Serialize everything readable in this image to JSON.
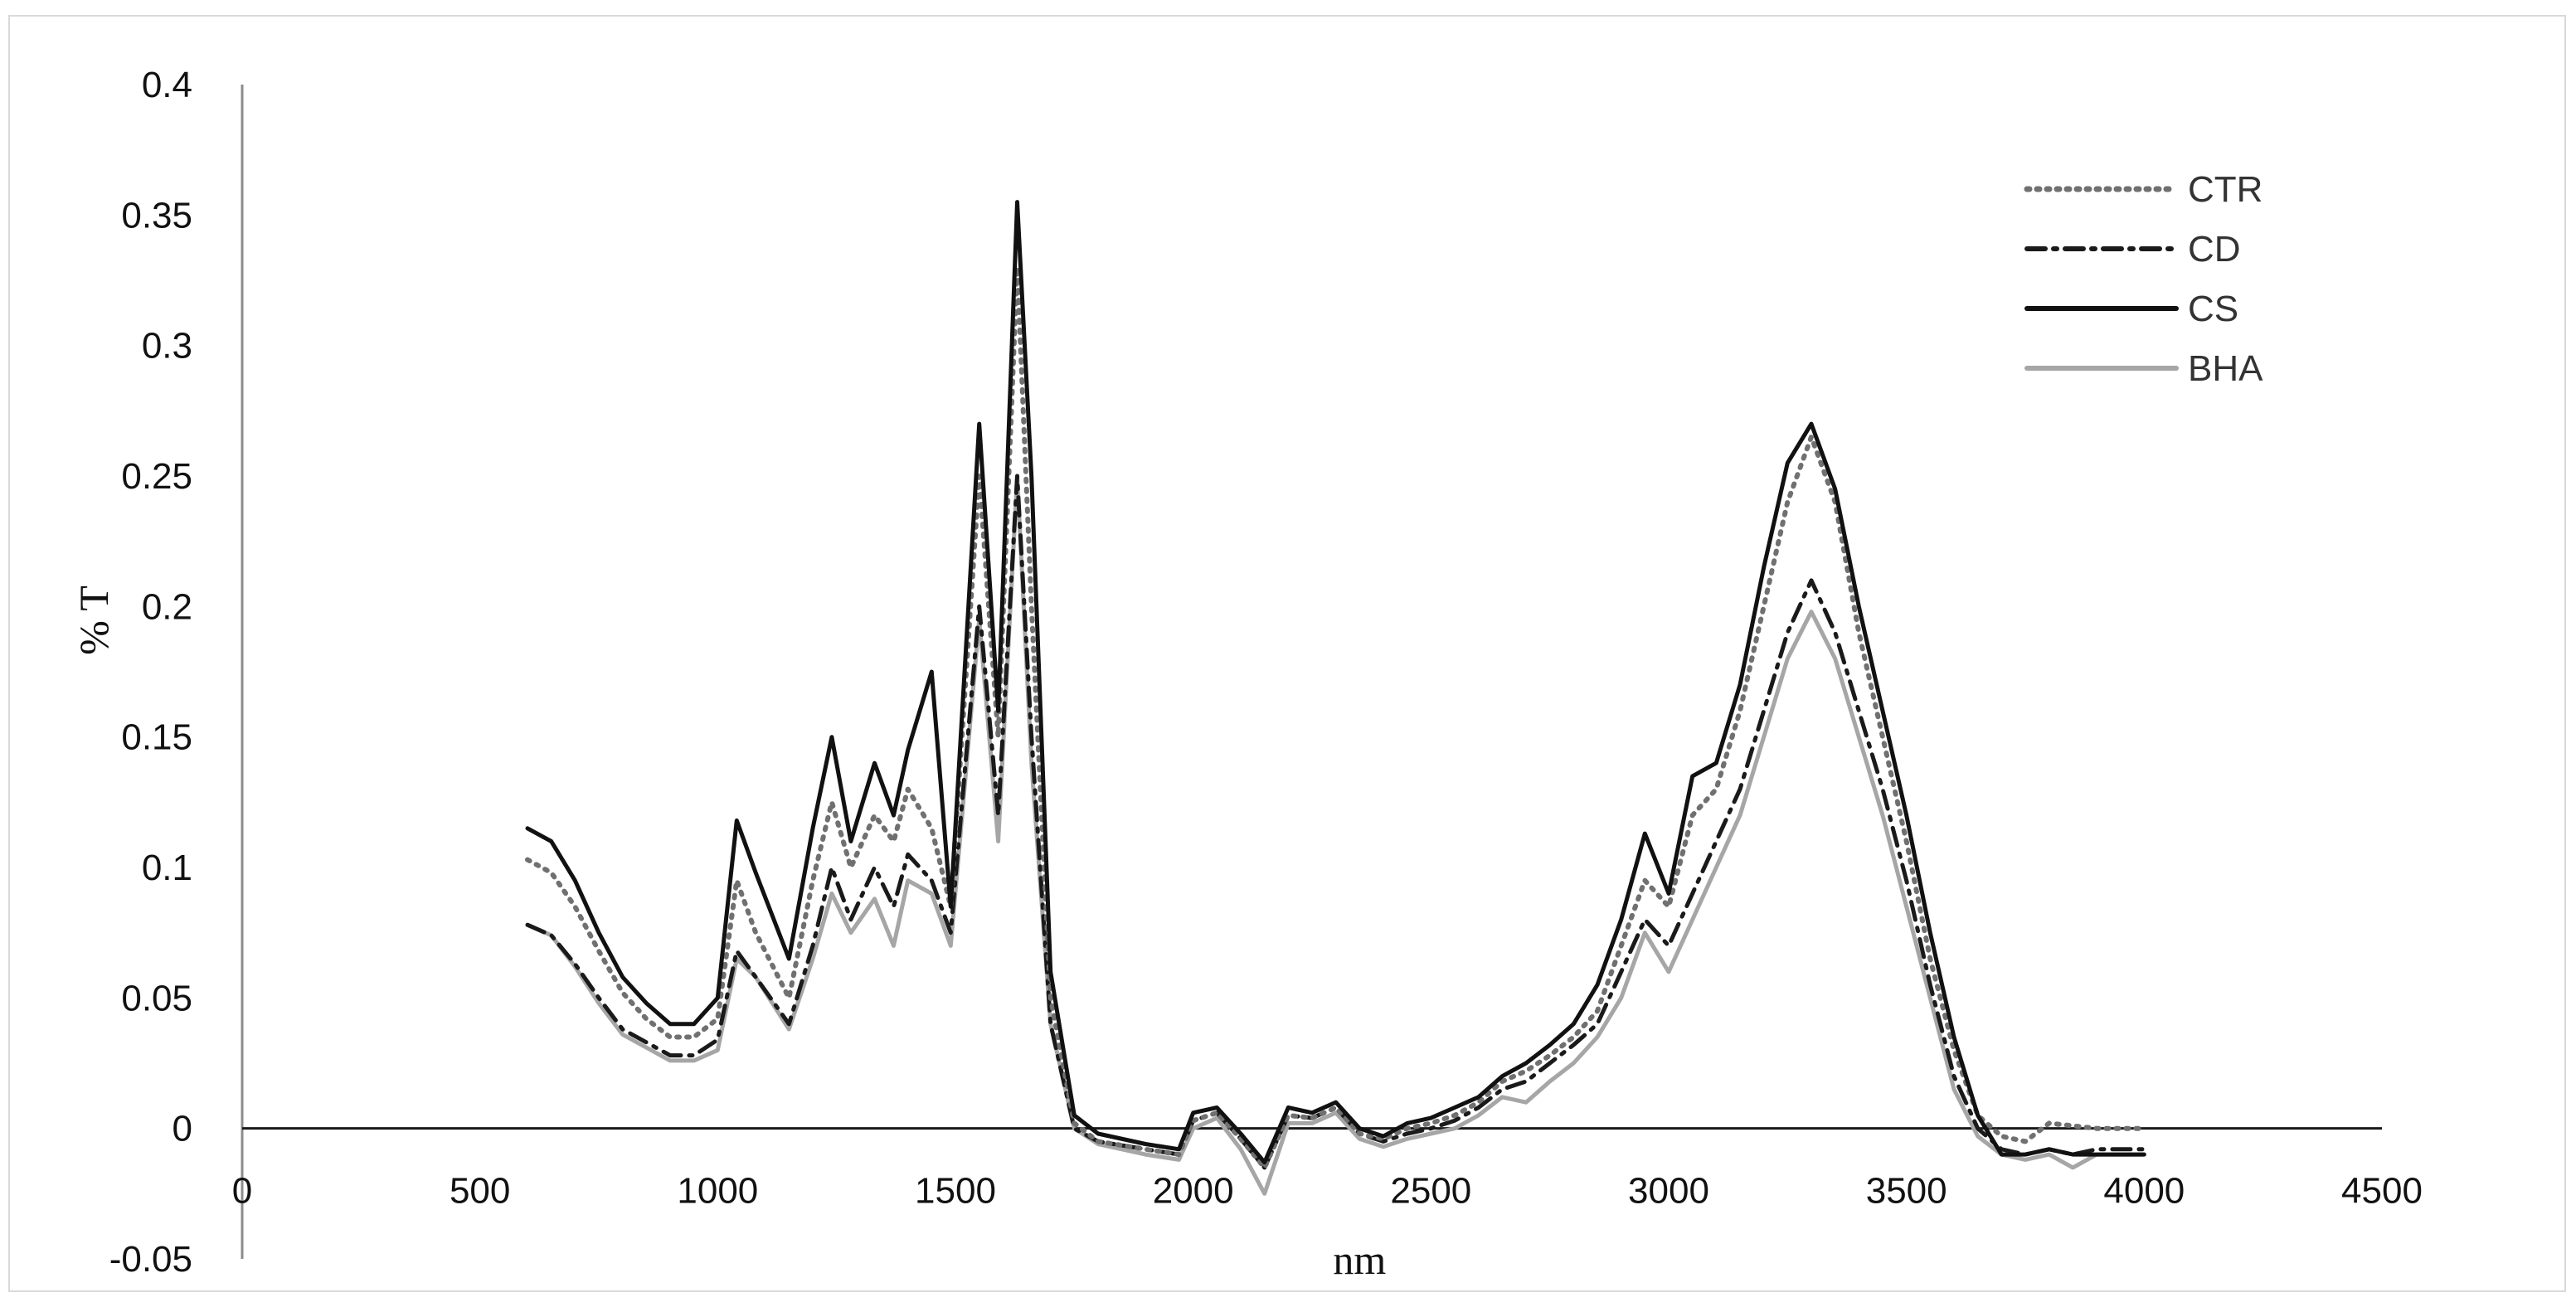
{
  "chart_data": {
    "type": "line",
    "title": "",
    "xlabel": "nm",
    "ylabel": "% T",
    "xlim": [
      0,
      4500
    ],
    "ylim": [
      -0.05,
      0.4
    ],
    "x_ticks": [
      0,
      500,
      1000,
      1500,
      2000,
      2500,
      3000,
      3500,
      4000,
      4500
    ],
    "x_tick_labels": [
      "0",
      "500",
      "1000",
      "1500",
      "2000",
      "2500",
      "3000",
      "3500",
      "4000",
      "4500"
    ],
    "y_ticks": [
      -0.05,
      0,
      0.05,
      0.1,
      0.15,
      0.2,
      0.25,
      0.3,
      0.35,
      0.4
    ],
    "y_tick_labels": [
      "-0.05",
      "0",
      "0.05",
      "0.1",
      "0.15",
      "0.2",
      "0.25",
      "0.3",
      "0.35",
      "0.4"
    ],
    "grid": false,
    "legend_position": "top-right",
    "series": [
      {
        "name": "CTR",
        "color": "#707070",
        "style": "dotted",
        "x": [
          600,
          650,
          700,
          750,
          800,
          850,
          900,
          950,
          1000,
          1040,
          1080,
          1150,
          1200,
          1240,
          1280,
          1330,
          1370,
          1400,
          1450,
          1490,
          1550,
          1590,
          1630,
          1660,
          1700,
          1750,
          1800,
          1900,
          1970,
          2000,
          2050,
          2100,
          2150,
          2200,
          2250,
          2300,
          2350,
          2400,
          2450,
          2500,
          2550,
          2600,
          2650,
          2700,
          2750,
          2800,
          2850,
          2900,
          2950,
          3000,
          3050,
          3100,
          3150,
          3200,
          3250,
          3300,
          3350,
          3400,
          3450,
          3500,
          3550,
          3600,
          3650,
          3700,
          3750,
          3800,
          3850,
          3900,
          3950,
          4000
        ],
        "y": [
          0.103,
          0.098,
          0.085,
          0.068,
          0.052,
          0.042,
          0.035,
          0.035,
          0.042,
          0.095,
          0.075,
          0.05,
          0.095,
          0.125,
          0.1,
          0.12,
          0.11,
          0.13,
          0.115,
          0.085,
          0.25,
          0.15,
          0.33,
          0.2,
          0.05,
          0.002,
          -0.005,
          -0.008,
          -0.01,
          0.003,
          0.006,
          -0.004,
          -0.015,
          0.005,
          0.004,
          0.008,
          -0.002,
          -0.004,
          0.0,
          0.002,
          0.005,
          0.01,
          0.018,
          0.022,
          0.028,
          0.035,
          0.045,
          0.07,
          0.095,
          0.085,
          0.12,
          0.13,
          0.16,
          0.2,
          0.24,
          0.265,
          0.24,
          0.19,
          0.15,
          0.11,
          0.065,
          0.03,
          0.005,
          -0.003,
          -0.005,
          0.002,
          0.001,
          0.0,
          0.0,
          0.0
        ]
      },
      {
        "name": "CD",
        "color": "#1a1a1a",
        "style": "dashdot",
        "x": [
          600,
          650,
          700,
          750,
          800,
          850,
          900,
          950,
          1000,
          1040,
          1080,
          1150,
          1200,
          1240,
          1280,
          1330,
          1370,
          1400,
          1450,
          1490,
          1550,
          1590,
          1630,
          1660,
          1700,
          1750,
          1800,
          1900,
          1970,
          2000,
          2050,
          2100,
          2150,
          2200,
          2250,
          2300,
          2350,
          2400,
          2450,
          2500,
          2550,
          2600,
          2650,
          2700,
          2750,
          2800,
          2850,
          2900,
          2950,
          3000,
          3050,
          3100,
          3150,
          3200,
          3250,
          3300,
          3350,
          3400,
          3450,
          3500,
          3550,
          3600,
          3650,
          3700,
          3750,
          3800,
          3850,
          3900,
          3950,
          4000
        ],
        "y": [
          0.078,
          0.074,
          0.063,
          0.05,
          0.038,
          0.033,
          0.028,
          0.028,
          0.034,
          0.068,
          0.058,
          0.04,
          0.07,
          0.1,
          0.08,
          0.1,
          0.085,
          0.105,
          0.095,
          0.075,
          0.2,
          0.12,
          0.25,
          0.15,
          0.04,
          0.0,
          -0.005,
          -0.008,
          -0.01,
          0.003,
          0.006,
          -0.004,
          -0.015,
          0.005,
          0.004,
          0.008,
          -0.002,
          -0.005,
          -0.002,
          0.0,
          0.003,
          0.008,
          0.015,
          0.018,
          0.025,
          0.032,
          0.04,
          0.06,
          0.08,
          0.07,
          0.09,
          0.11,
          0.13,
          0.16,
          0.19,
          0.21,
          0.19,
          0.16,
          0.13,
          0.095,
          0.055,
          0.02,
          0.0,
          -0.008,
          -0.01,
          -0.008,
          -0.01,
          -0.008,
          -0.008,
          -0.008
        ]
      },
      {
        "name": "CS",
        "color": "#111111",
        "style": "solid",
        "x": [
          600,
          650,
          700,
          750,
          800,
          850,
          900,
          950,
          1000,
          1040,
          1080,
          1150,
          1200,
          1240,
          1280,
          1330,
          1370,
          1400,
          1450,
          1490,
          1550,
          1590,
          1630,
          1660,
          1700,
          1750,
          1800,
          1900,
          1970,
          2000,
          2050,
          2100,
          2150,
          2200,
          2250,
          2300,
          2350,
          2400,
          2450,
          2500,
          2550,
          2600,
          2650,
          2700,
          2750,
          2800,
          2850,
          2900,
          2950,
          3000,
          3050,
          3100,
          3150,
          3200,
          3250,
          3300,
          3350,
          3400,
          3450,
          3500,
          3550,
          3600,
          3650,
          3700,
          3750,
          3800,
          3850,
          3900,
          3950,
          4000
        ],
        "y": [
          0.115,
          0.11,
          0.095,
          0.075,
          0.058,
          0.048,
          0.04,
          0.04,
          0.05,
          0.118,
          0.098,
          0.065,
          0.115,
          0.15,
          0.11,
          0.14,
          0.12,
          0.145,
          0.175,
          0.085,
          0.27,
          0.16,
          0.355,
          0.25,
          0.06,
          0.005,
          -0.002,
          -0.006,
          -0.008,
          0.006,
          0.008,
          -0.002,
          -0.013,
          0.008,
          0.006,
          0.01,
          0.0,
          -0.003,
          0.002,
          0.004,
          0.008,
          0.012,
          0.02,
          0.025,
          0.032,
          0.04,
          0.055,
          0.08,
          0.113,
          0.09,
          0.135,
          0.14,
          0.17,
          0.215,
          0.255,
          0.27,
          0.245,
          0.2,
          0.16,
          0.12,
          0.075,
          0.035,
          0.005,
          -0.01,
          -0.01,
          -0.008,
          -0.01,
          -0.01,
          -0.01,
          -0.01
        ]
      },
      {
        "name": "BHA",
        "color": "#a6a6a6",
        "style": "solid",
        "x": [
          600,
          650,
          700,
          750,
          800,
          850,
          900,
          950,
          1000,
          1040,
          1080,
          1150,
          1200,
          1240,
          1280,
          1330,
          1370,
          1400,
          1450,
          1490,
          1550,
          1590,
          1630,
          1660,
          1700,
          1750,
          1800,
          1900,
          1970,
          2000,
          2050,
          2100,
          2150,
          2200,
          2250,
          2300,
          2350,
          2400,
          2450,
          2500,
          2550,
          2600,
          2650,
          2700,
          2750,
          2800,
          2850,
          2900,
          2950,
          3000,
          3050,
          3100,
          3150,
          3200,
          3250,
          3300,
          3350,
          3400,
          3450,
          3500,
          3550,
          3600,
          3650,
          3700,
          3750,
          3800,
          3850,
          3900,
          3950,
          4000
        ],
        "y": [
          0.078,
          0.074,
          0.062,
          0.048,
          0.036,
          0.031,
          0.026,
          0.026,
          0.03,
          0.065,
          0.058,
          0.038,
          0.065,
          0.09,
          0.075,
          0.088,
          0.07,
          0.095,
          0.09,
          0.07,
          0.195,
          0.11,
          0.25,
          0.14,
          0.04,
          0.0,
          -0.006,
          -0.01,
          -0.012,
          0.0,
          0.004,
          -0.008,
          -0.025,
          0.002,
          0.002,
          0.006,
          -0.004,
          -0.007,
          -0.004,
          -0.002,
          0.0,
          0.005,
          0.012,
          0.01,
          0.018,
          0.025,
          0.035,
          0.05,
          0.075,
          0.06,
          0.08,
          0.1,
          0.12,
          0.15,
          0.18,
          0.198,
          0.18,
          0.15,
          0.12,
          0.085,
          0.05,
          0.015,
          -0.003,
          -0.01,
          -0.012,
          -0.01,
          -0.015,
          -0.01,
          -0.01,
          -0.01
        ]
      }
    ]
  }
}
